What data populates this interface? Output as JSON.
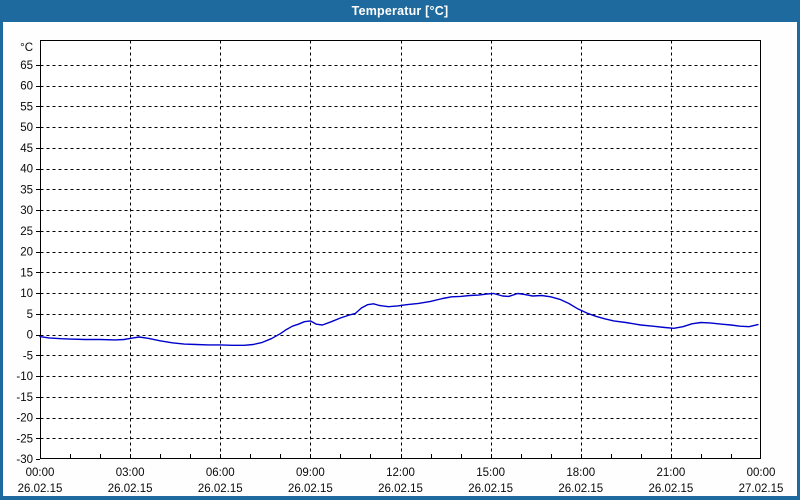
{
  "window": {
    "title": "Temperatur [°C]"
  },
  "colors": {
    "titlebar_bg": "#1e699e",
    "window_border": "#1e699e",
    "content_bg": "#fdfefd",
    "plot_bg": "#ffffff",
    "plot_border": "#000000",
    "grid": "#000000",
    "tick": "#000000",
    "label_text": "#0a0a0a",
    "line": "#0000cc"
  },
  "chart_data": {
    "type": "line",
    "title": "Temperatur [°C]",
    "y_unit_label": "°C",
    "xlabel": "",
    "ylabel": "°C",
    "ylim": [
      -30,
      71
    ],
    "y_tick_step": 5,
    "y_ticks": [
      -30,
      -25,
      -20,
      -15,
      -10,
      -5,
      0,
      5,
      10,
      15,
      20,
      25,
      30,
      35,
      40,
      45,
      50,
      55,
      60,
      65
    ],
    "x_hours_range": [
      0,
      24
    ],
    "x_minor_step_hours": 1,
    "grid": "dashed",
    "legend_position": "none",
    "x_major_ticks": [
      {
        "hour": 0,
        "time": "00:00",
        "date": "26.02.15"
      },
      {
        "hour": 3,
        "time": "03:00",
        "date": "26.02.15"
      },
      {
        "hour": 6,
        "time": "06:00",
        "date": "26.02.15"
      },
      {
        "hour": 9,
        "time": "09:00",
        "date": "26.02.15"
      },
      {
        "hour": 12,
        "time": "12:00",
        "date": "26.02.15"
      },
      {
        "hour": 15,
        "time": "15:00",
        "date": "26.02.15"
      },
      {
        "hour": 18,
        "time": "18:00",
        "date": "26.02.15"
      },
      {
        "hour": 21,
        "time": "21:00",
        "date": "26.02.15"
      },
      {
        "hour": 24,
        "time": "00:00",
        "date": "27.02.15"
      }
    ],
    "series": [
      {
        "name": "Temperatur",
        "color": "#0000cc",
        "points": [
          [
            0.0,
            -0.5
          ],
          [
            0.3,
            -0.8
          ],
          [
            0.7,
            -1.0
          ],
          [
            1.0,
            -1.1
          ],
          [
            1.5,
            -1.2
          ],
          [
            2.0,
            -1.2
          ],
          [
            2.5,
            -1.3
          ],
          [
            2.8,
            -1.2
          ],
          [
            3.1,
            -0.8
          ],
          [
            3.3,
            -0.6
          ],
          [
            3.6,
            -0.9
          ],
          [
            4.0,
            -1.5
          ],
          [
            4.4,
            -2.0
          ],
          [
            4.8,
            -2.3
          ],
          [
            5.2,
            -2.4
          ],
          [
            5.6,
            -2.5
          ],
          [
            6.0,
            -2.5
          ],
          [
            6.4,
            -2.6
          ],
          [
            6.8,
            -2.6
          ],
          [
            7.1,
            -2.4
          ],
          [
            7.4,
            -1.9
          ],
          [
            7.7,
            -1.0
          ],
          [
            8.0,
            0.2
          ],
          [
            8.2,
            1.2
          ],
          [
            8.4,
            2.0
          ],
          [
            8.6,
            2.5
          ],
          [
            8.8,
            3.1
          ],
          [
            9.0,
            3.3
          ],
          [
            9.2,
            2.5
          ],
          [
            9.4,
            2.3
          ],
          [
            9.7,
            3.1
          ],
          [
            10.0,
            4.0
          ],
          [
            10.3,
            4.7
          ],
          [
            10.5,
            5.1
          ],
          [
            10.7,
            6.4
          ],
          [
            10.9,
            7.2
          ],
          [
            11.1,
            7.4
          ],
          [
            11.3,
            7.0
          ],
          [
            11.6,
            6.7
          ],
          [
            11.9,
            6.9
          ],
          [
            12.2,
            7.2
          ],
          [
            12.6,
            7.5
          ],
          [
            13.0,
            8.0
          ],
          [
            13.4,
            8.7
          ],
          [
            13.7,
            9.1
          ],
          [
            14.0,
            9.2
          ],
          [
            14.3,
            9.4
          ],
          [
            14.6,
            9.5
          ],
          [
            14.9,
            9.8
          ],
          [
            15.1,
            9.9
          ],
          [
            15.4,
            9.3
          ],
          [
            15.6,
            9.2
          ],
          [
            15.9,
            9.9
          ],
          [
            16.1,
            9.7
          ],
          [
            16.4,
            9.3
          ],
          [
            16.7,
            9.4
          ],
          [
            17.0,
            9.1
          ],
          [
            17.3,
            8.5
          ],
          [
            17.6,
            7.5
          ],
          [
            17.9,
            6.2
          ],
          [
            18.2,
            5.2
          ],
          [
            18.5,
            4.4
          ],
          [
            18.8,
            3.8
          ],
          [
            19.1,
            3.3
          ],
          [
            19.5,
            2.9
          ],
          [
            20.0,
            2.3
          ],
          [
            20.4,
            2.0
          ],
          [
            20.8,
            1.7
          ],
          [
            21.1,
            1.5
          ],
          [
            21.4,
            1.9
          ],
          [
            21.7,
            2.6
          ],
          [
            22.0,
            2.9
          ],
          [
            22.3,
            2.8
          ],
          [
            22.7,
            2.5
          ],
          [
            23.0,
            2.3
          ],
          [
            23.3,
            2.0
          ],
          [
            23.6,
            1.9
          ],
          [
            23.9,
            2.4
          ]
        ]
      }
    ]
  }
}
